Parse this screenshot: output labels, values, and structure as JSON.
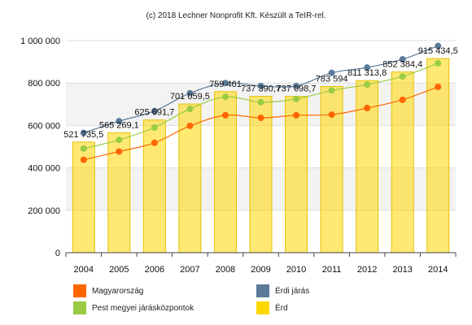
{
  "credit": "(c) 2018 Lechner Nonprofit Kft. Készült a TeIR-rel.",
  "chart_data": {
    "type": "bar",
    "categories": [
      "2004",
      "2005",
      "2006",
      "2007",
      "2008",
      "2009",
      "2010",
      "2011",
      "2012",
      "2013",
      "2014"
    ],
    "ylim": [
      0,
      1000000
    ],
    "yticks": [
      "0",
      "200 000",
      "400 000",
      "600 000",
      "800 000",
      "1 000 000"
    ],
    "grid": true,
    "legend_position": "bottom",
    "series": [
      {
        "name": "Érd",
        "kind": "bar",
        "color": "#ffd700",
        "values": [
          521735.5,
          565269.1,
          625691.7,
          701059.5,
          759461,
          737390.7,
          737098.7,
          783594,
          811313.8,
          852384.4,
          915434.5
        ],
        "labels": [
          "521 735,5",
          "565 269,1",
          "625 691,7",
          "701 059,5",
          "759 461",
          "737 390,7",
          "737 098,7",
          "783 594",
          "811 313,8",
          "852 384,4",
          "915 434,5"
        ]
      },
      {
        "name": "Magyarország",
        "kind": "line",
        "color": "#ff6600",
        "values": [
          438000,
          477000,
          518000,
          598000,
          648000,
          636000,
          648000,
          651000,
          682000,
          721000,
          782000
        ]
      },
      {
        "name": "Érdi járás",
        "kind": "line",
        "color": "#5c7a99",
        "values": [
          565000,
          620000,
          668000,
          752000,
          800000,
          786000,
          786000,
          848000,
          873000,
          912000,
          975000
        ]
      },
      {
        "name": "Pest megyei járásközpontok",
        "kind": "line",
        "color": "#99cc44",
        "values": [
          491000,
          532000,
          590000,
          678000,
          735000,
          710000,
          725000,
          765000,
          793000,
          831000,
          893000
        ]
      }
    ]
  }
}
